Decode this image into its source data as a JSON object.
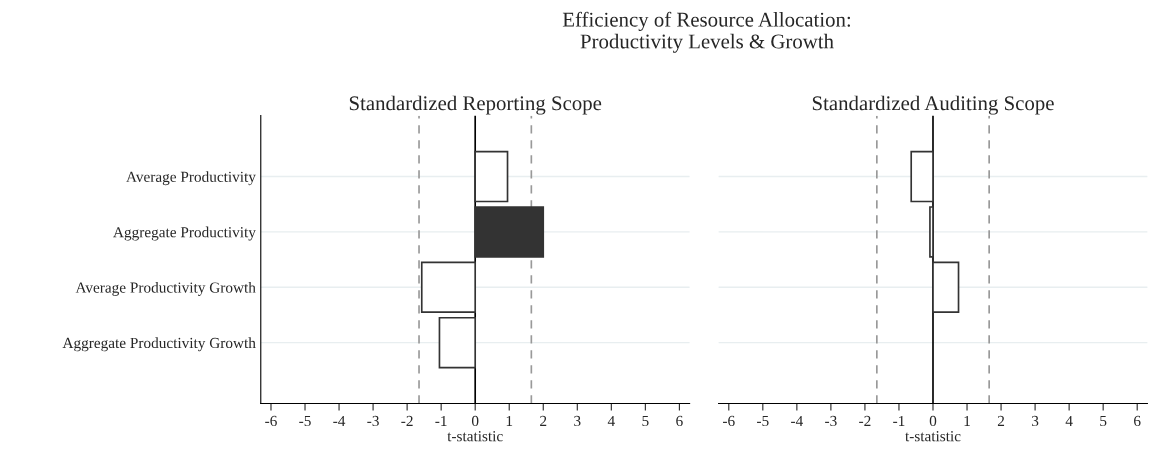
{
  "chart_data": [
    {
      "type": "bar",
      "orientation": "horizontal",
      "title": "Standardized Reporting Scope",
      "xlabel": "t-statistic",
      "annotations": [
        "Efficiency of Resource Allocation:\nProductivity Levels & Growth"
      ],
      "categories": [
        "Average Productivity",
        "Aggregate Productivity",
        "Average Productivity Growth",
        "Aggregate Productivity Growth"
      ],
      "values": [
        0.95,
        2.0,
        -1.57,
        -1.05
      ],
      "colors": [
        "#ffffff",
        "#333333",
        "#ffffff",
        "#ffffff"
      ],
      "xlim": [
        -6.3,
        6.3
      ],
      "xticks": [
        -6,
        -5,
        -4,
        -3,
        -2,
        -1,
        0,
        1,
        2,
        3,
        4,
        5,
        6
      ],
      "grid": "y",
      "ref_lines": [
        {
          "axis": "x",
          "value": 0,
          "color": "#000000",
          "line_style": "solid"
        },
        {
          "axis": "x",
          "value": -1.65,
          "color": "#999999",
          "line_style": "dashed"
        },
        {
          "axis": "x",
          "value": 1.65,
          "color": "#999999",
          "line_style": "dashed"
        }
      ]
    },
    {
      "type": "bar",
      "orientation": "horizontal",
      "title": "Standardized Auditing Scope",
      "xlabel": "t-statistic",
      "tick_labels": "x",
      "categories": [
        null,
        null,
        null,
        null
      ],
      "values": [
        -0.64,
        -0.09,
        0.75,
        null
      ],
      "colors": [
        "#ffffff",
        "#ffffff",
        "#ffffff",
        "#ffffff"
      ],
      "xlim": [
        -6.3,
        6.3
      ],
      "xticks": [
        -6,
        -5,
        -4,
        -3,
        -2,
        -1,
        0,
        1,
        2,
        3,
        4,
        5,
        6
      ],
      "grid": "y",
      "ref_lines": [
        {
          "axis": "x",
          "value": 0,
          "color": "#000000",
          "line_style": "solid"
        },
        {
          "axis": "x",
          "value": -1.65,
          "color": "#999999",
          "line_style": "dashed"
        },
        {
          "axis": "x",
          "value": 1.65,
          "color": "#999999",
          "line_style": "dashed"
        }
      ]
    }
  ]
}
